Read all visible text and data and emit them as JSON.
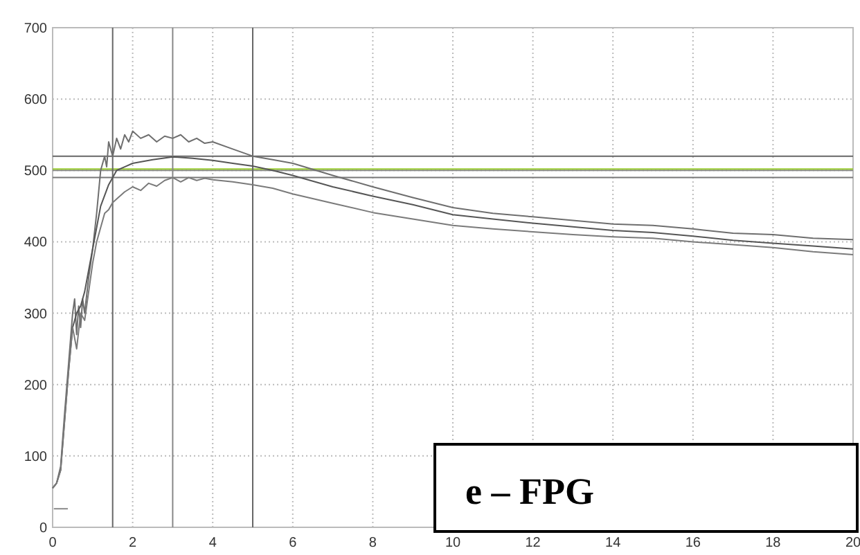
{
  "chart_data": {
    "type": "line",
    "xlim": [
      0,
      20
    ],
    "ylim": [
      0,
      700
    ],
    "xticks": [
      0,
      2,
      4,
      6,
      8,
      10,
      12,
      14,
      16,
      18,
      20
    ],
    "yticks": [
      0,
      100,
      200,
      300,
      400,
      500,
      600,
      700
    ],
    "grid": true,
    "line_style": "solid",
    "series": [
      {
        "color": "#6e6e6e",
        "x": [
          0,
          0.1,
          0.2,
          0.3,
          0.4,
          0.5,
          0.55,
          0.6,
          0.65,
          0.7,
          0.75,
          0.8,
          0.9,
          1.0,
          1.1,
          1.2,
          1.3,
          1.35,
          1.4,
          1.5,
          1.6,
          1.7,
          1.8,
          1.9,
          2.0,
          2.2,
          2.4,
          2.6,
          2.8,
          3.0,
          3.2,
          3.4,
          3.6,
          3.8,
          4.0,
          4.5,
          5.0,
          5.5,
          6.0,
          7.0,
          8.0,
          9.0,
          10.0,
          11.0,
          12.0,
          13.0,
          14.0,
          15.0,
          16.0,
          17.0,
          18.0,
          19.0,
          20.0
        ],
        "values": [
          55,
          62,
          85,
          160,
          230,
          300,
          320,
          270,
          310,
          280,
          320,
          300,
          350,
          390,
          440,
          500,
          520,
          505,
          540,
          520,
          545,
          530,
          550,
          540,
          555,
          545,
          550,
          540,
          548,
          545,
          550,
          540,
          545,
          538,
          540,
          530,
          520,
          515,
          510,
          493,
          477,
          462,
          448,
          440,
          435,
          430,
          425,
          423,
          418,
          412,
          410,
          405,
          403
        ]
      },
      {
        "color": "#555555",
        "x": [
          0,
          0.1,
          0.2,
          0.3,
          0.4,
          0.5,
          0.6,
          0.7,
          0.8,
          0.9,
          1.0,
          1.1,
          1.2,
          1.4,
          1.6,
          1.8,
          2.0,
          2.5,
          3.0,
          3.5,
          4.0,
          4.5,
          5.0,
          5.5,
          6.0,
          7.0,
          8.0,
          9.0,
          10.0,
          11.0,
          12.0,
          13.0,
          14.0,
          15.0,
          16.0,
          17.0,
          18.0,
          19.0,
          20.0
        ],
        "values": [
          55,
          62,
          80,
          150,
          220,
          280,
          300,
          310,
          330,
          360,
          390,
          420,
          450,
          480,
          500,
          505,
          510,
          515,
          519,
          517,
          514,
          510,
          506,
          500,
          493,
          477,
          464,
          452,
          438,
          432,
          426,
          421,
          416,
          413,
          408,
          402,
          398,
          394,
          390
        ]
      },
      {
        "color": "#7a7a7a",
        "x": [
          0,
          0.1,
          0.2,
          0.3,
          0.4,
          0.5,
          0.6,
          0.7,
          0.8,
          0.9,
          1.0,
          1.1,
          1.2,
          1.3,
          1.4,
          1.5,
          1.6,
          1.8,
          2.0,
          2.2,
          2.4,
          2.6,
          2.8,
          3.0,
          3.2,
          3.4,
          3.6,
          3.8,
          4.0,
          4.5,
          5.0,
          5.5,
          6.0,
          7.0,
          8.0,
          9.0,
          10.0,
          11.0,
          12.0,
          13.0,
          14.0,
          15.0,
          16.0,
          17.0,
          18.0,
          19.0,
          20.0
        ],
        "values": [
          55,
          62,
          80,
          150,
          220,
          280,
          250,
          300,
          290,
          330,
          370,
          400,
          420,
          440,
          445,
          455,
          460,
          470,
          477,
          472,
          482,
          478,
          486,
          490,
          484,
          490,
          486,
          489,
          487,
          484,
          480,
          475,
          467,
          454,
          441,
          432,
          423,
          418,
          414,
          410,
          407,
          405,
          400,
          396,
          392,
          386,
          382
        ]
      },
      {
        "color": "#8a8a8a",
        "x": [
          0.03,
          0.38
        ],
        "values": [
          26,
          26
        ]
      }
    ],
    "ref_lines": [
      {
        "axis": "y",
        "value": 520,
        "color": "#666666"
      },
      {
        "axis": "y",
        "value": 500,
        "color": "#888888"
      },
      {
        "axis": "y",
        "value": 490,
        "color": "#777777"
      },
      {
        "axis": "y",
        "value": 502,
        "color": "#9acd32"
      },
      {
        "axis": "x",
        "value": 1.5,
        "color": "#666666"
      },
      {
        "axis": "x",
        "value": 3,
        "color": "#888888"
      },
      {
        "axis": "x",
        "value": 5,
        "color": "#666666"
      }
    ],
    "annotations": [
      "e – FPG"
    ]
  }
}
